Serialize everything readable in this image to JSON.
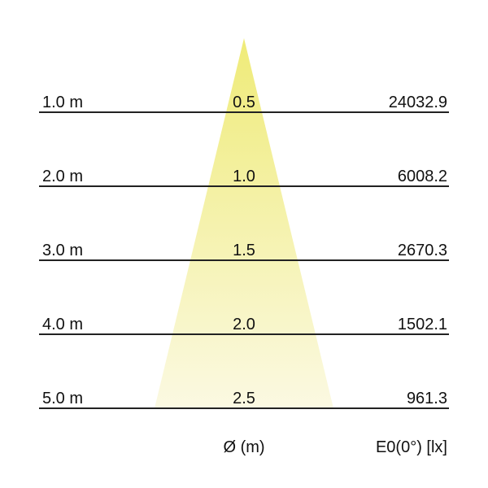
{
  "rows": [
    {
      "distance": "1.0 m",
      "diameter": "0.5",
      "illuminance": "24032.9"
    },
    {
      "distance": "2.0 m",
      "diameter": "1.0",
      "illuminance": "6008.2"
    },
    {
      "distance": "3.0 m",
      "diameter": "1.5",
      "illuminance": "2670.3"
    },
    {
      "distance": "4.0 m",
      "diameter": "2.0",
      "illuminance": "1502.1"
    },
    {
      "distance": "5.0 m",
      "diameter": "2.5",
      "illuminance": "961.3"
    }
  ],
  "footer": {
    "diameter_label": "Ø (m)",
    "illuminance_label": "E0(0°) [lx]"
  },
  "colors": {
    "cone_top": "#efeb78",
    "cone_bottom": "#fbf9e2",
    "line": "#222222"
  }
}
